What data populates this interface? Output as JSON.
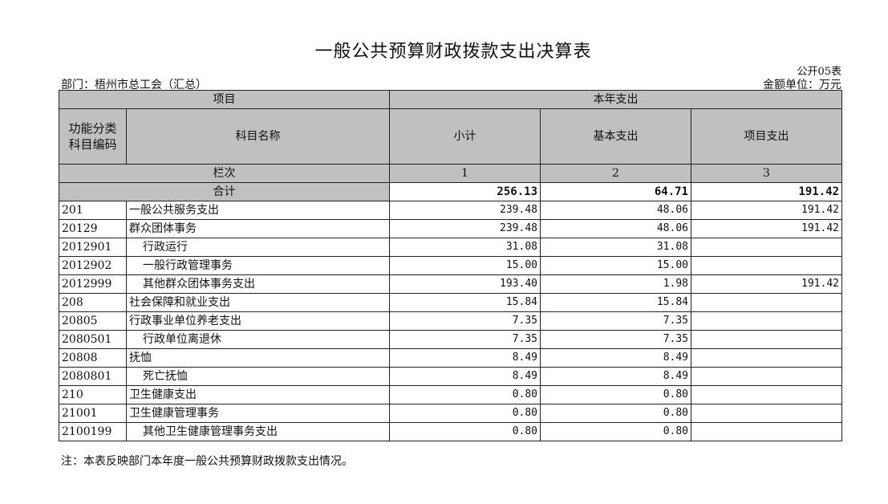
{
  "title": "一般公共预算财政拨款支出决算表",
  "form_no": "公开05表",
  "department": "部门：梧州市总工会（汇总）",
  "unit": "金额单位：万元",
  "headers": {
    "item": "项目",
    "current_year": "本年支出",
    "code": "功能分类\n科目编码",
    "name": "科目名称",
    "subtotal": "小计",
    "basic": "基本支出",
    "project": "项目支出",
    "column_no": "栏次",
    "col1": "1",
    "col2": "2",
    "col3": "3",
    "total": "合计"
  },
  "total": {
    "subtotal": "256.13",
    "basic": "64.71",
    "project": "191.42"
  },
  "rows": [
    {
      "code": "201",
      "name": "一般公共服务支出",
      "subtotal": "239.48",
      "basic": "48.06",
      "project": "191.42",
      "level": 0
    },
    {
      "code": "20129",
      "name": "群众团体事务",
      "subtotal": "239.48",
      "basic": "48.06",
      "project": "191.42",
      "level": 0
    },
    {
      "code": "2012901",
      "name": "行政运行",
      "subtotal": "31.08",
      "basic": "31.08",
      "project": "",
      "level": 1
    },
    {
      "code": "2012902",
      "name": "一般行政管理事务",
      "subtotal": "15.00",
      "basic": "15.00",
      "project": "",
      "level": 1
    },
    {
      "code": "2012999",
      "name": "其他群众团体事务支出",
      "subtotal": "193.40",
      "basic": "1.98",
      "project": "191.42",
      "level": 1
    },
    {
      "code": "208",
      "name": "社会保障和就业支出",
      "subtotal": "15.84",
      "basic": "15.84",
      "project": "",
      "level": 0
    },
    {
      "code": "20805",
      "name": "行政事业单位养老支出",
      "subtotal": "7.35",
      "basic": "7.35",
      "project": "",
      "level": 0
    },
    {
      "code": "2080501",
      "name": "行政单位离退休",
      "subtotal": "7.35",
      "basic": "7.35",
      "project": "",
      "level": 1
    },
    {
      "code": "20808",
      "name": "抚恤",
      "subtotal": "8.49",
      "basic": "8.49",
      "project": "",
      "level": 0
    },
    {
      "code": "2080801",
      "name": "死亡抚恤",
      "subtotal": "8.49",
      "basic": "8.49",
      "project": "",
      "level": 1
    },
    {
      "code": "210",
      "name": "卫生健康支出",
      "subtotal": "0.80",
      "basic": "0.80",
      "project": "",
      "level": 0
    },
    {
      "code": "21001",
      "name": "卫生健康管理事务",
      "subtotal": "0.80",
      "basic": "0.80",
      "project": "",
      "level": 0
    },
    {
      "code": "2100199",
      "name": "其他卫生健康管理事务支出",
      "subtotal": "0.80",
      "basic": "0.80",
      "project": "",
      "level": 1
    }
  ],
  "note": "注：本表反映部门本年度一般公共预算财政拨款支出情况。"
}
